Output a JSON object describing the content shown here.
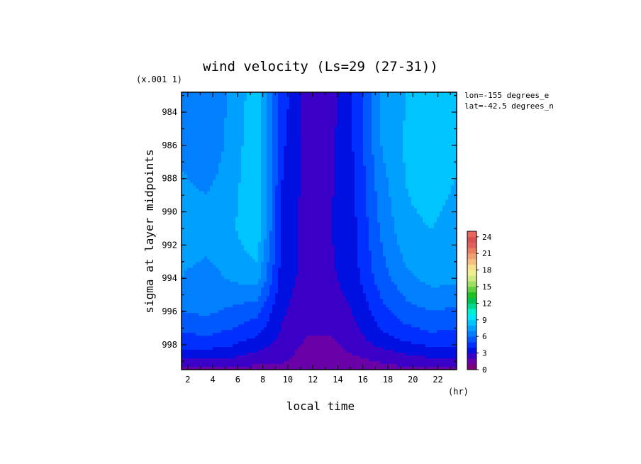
{
  "chart_data": {
    "type": "heatmap",
    "title": "wind velocity (Ls=29 (27-31))",
    "xlabel": "local time",
    "ylabel": "sigma at layer midpoints",
    "x_unit": "(hr)",
    "y_scale_note": "(x.001 1)",
    "annotations": [
      "lon=-155 degrees_e",
      "lat=-42.5 degrees_n"
    ],
    "x_ticks": [
      "2",
      "4",
      "6",
      "8",
      "10",
      "12",
      "14",
      "16",
      "18",
      "20",
      "22"
    ],
    "y_ticks": [
      "984",
      "986",
      "988",
      "990",
      "992",
      "994",
      "996",
      "998"
    ],
    "xlim": [
      1.5,
      23.5
    ],
    "ylim": [
      982.8,
      999.5
    ],
    "y_inverted": true,
    "x": [
      1.5,
      3.5,
      5.5,
      7.5,
      9.5,
      11.5,
      13.5,
      15.5,
      17.5,
      19.5,
      21.5,
      23.5
    ],
    "y": [
      982.8,
      986.2,
      991.0,
      993.9,
      995.7,
      996.8,
      997.7,
      998.4,
      998.9,
      999.3,
      999.5
    ],
    "z": [
      [
        6.6,
        6.0,
        7.2,
        8.6,
        4.6,
        2.6,
        2.6,
        4.4,
        7.2,
        8.0,
        8.6,
        8.0
      ],
      [
        6.8,
        6.2,
        7.4,
        8.8,
        4.2,
        2.6,
        2.8,
        4.2,
        7.0,
        8.2,
        8.8,
        8.2
      ],
      [
        7.6,
        7.6,
        7.8,
        9.0,
        3.8,
        2.6,
        3.0,
        4.0,
        6.2,
        7.8,
        8.0,
        7.6
      ],
      [
        7.0,
        6.6,
        7.2,
        7.6,
        3.6,
        2.6,
        2.8,
        3.8,
        5.6,
        6.8,
        7.4,
        7.4
      ],
      [
        6.2,
        6.4,
        6.0,
        5.6,
        3.2,
        2.4,
        2.4,
        3.2,
        4.8,
        5.8,
        6.2,
        6.0
      ],
      [
        5.4,
        5.6,
        5.2,
        4.6,
        3.0,
        2.2,
        2.2,
        3.0,
        4.2,
        5.0,
        5.4,
        5.2
      ],
      [
        4.6,
        4.8,
        4.4,
        3.8,
        2.8,
        1.9,
        1.9,
        2.6,
        3.6,
        4.2,
        4.6,
        4.4
      ],
      [
        3.8,
        3.8,
        3.6,
        3.0,
        2.4,
        1.7,
        1.7,
        2.2,
        2.8,
        3.2,
        3.6,
        3.6
      ],
      [
        3.0,
        3.0,
        2.8,
        2.4,
        2.2,
        1.6,
        1.6,
        1.8,
        2.2,
        2.6,
        2.8,
        2.8
      ],
      [
        2.2,
        2.2,
        2.0,
        1.9,
        1.8,
        1.5,
        1.5,
        1.5,
        1.8,
        2.0,
        2.2,
        2.2
      ],
      [
        1.5,
        1.5,
        1.5,
        1.5,
        1.5,
        1.5,
        1.5,
        1.5,
        1.5,
        1.5,
        1.5,
        1.5
      ]
    ],
    "colorbar": {
      "ticks": [
        "0",
        "3",
        "6",
        "9",
        "12",
        "15",
        "18",
        "21",
        "24"
      ],
      "min": 0,
      "max": 25,
      "step": 1,
      "colors": [
        "#7f007f",
        "#6a00a8",
        "#3a00c8",
        "#0010e0",
        "#0030ff",
        "#0058ff",
        "#0080ff",
        "#00a0ff",
        "#00c4ff",
        "#00e4ff",
        "#00f0d0",
        "#00d890",
        "#00c050",
        "#20c020",
        "#60d040",
        "#a0e060",
        "#d0ec80",
        "#f0f090",
        "#f8e090",
        "#f8c080",
        "#f0a070",
        "#e88060",
        "#e06060",
        "#d85050",
        "#e86860"
      ]
    }
  }
}
